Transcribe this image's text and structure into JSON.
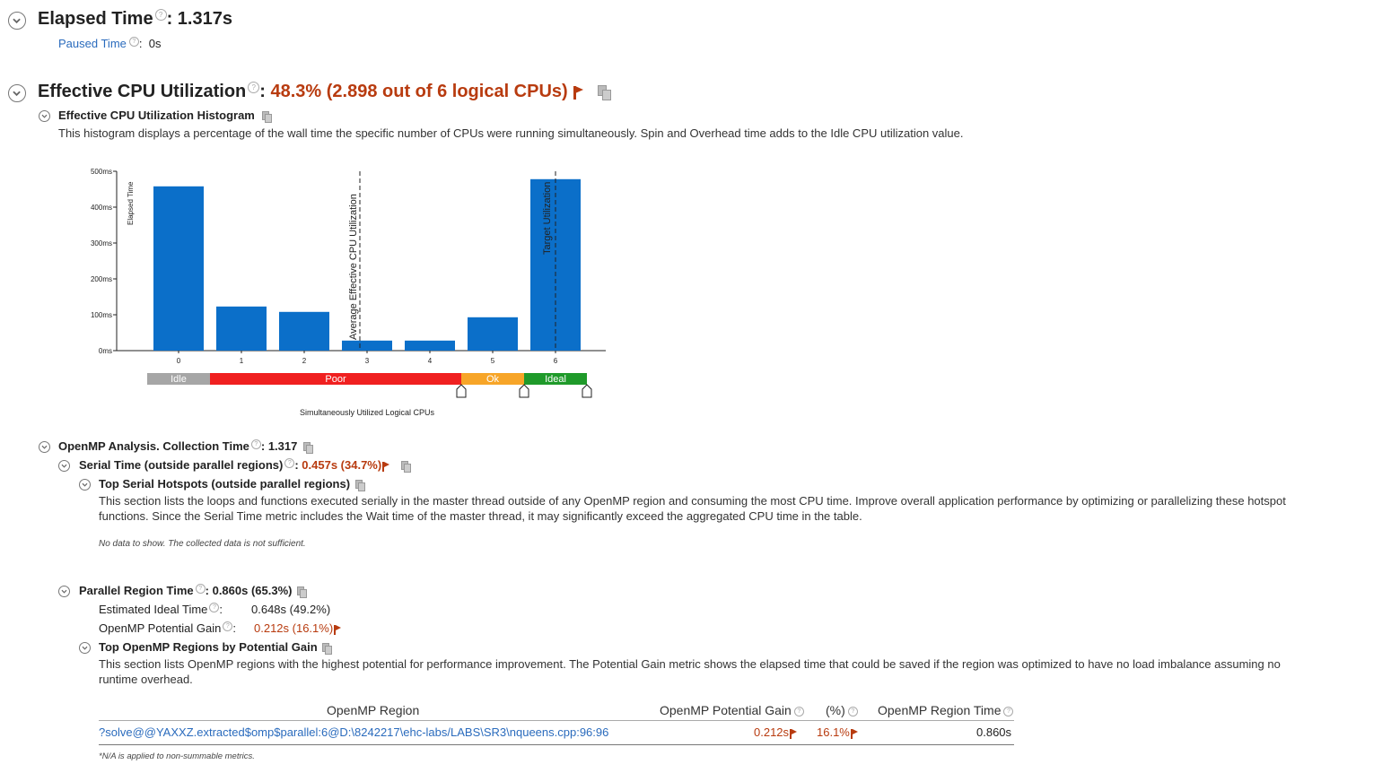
{
  "elapsed": {
    "label": "Elapsed Time",
    "value": "1.317s",
    "paused_label": "Paused Time",
    "paused_value": "0s"
  },
  "cpu": {
    "label": "Effective CPU Utilization",
    "value": "48.3% (2.898 out of 6 logical CPUs)"
  },
  "histogram": {
    "title": "Effective CPU Utilization Histogram",
    "description": "This histogram displays a percentage of the wall time the specific number of CPUs were running simultaneously. Spin and Overhead time adds to the Idle CPU utilization value.",
    "xlabel": "Simultaneously Utilized Logical CPUs",
    "ylabel": "Elapsed Time",
    "avg_label": "Average Effective CPU Utilization",
    "target_label": "Target Utilization",
    "bands": [
      "Idle",
      "Poor",
      "Ok",
      "Ideal"
    ]
  },
  "chart_data": {
    "type": "bar",
    "categories": [
      "0",
      "1",
      "2",
      "3",
      "4",
      "5",
      "6"
    ],
    "values": [
      458,
      123,
      108,
      28,
      28,
      93,
      478
    ],
    "ylabel": "Elapsed Time",
    "xlabel": "Simultaneously Utilized Logical CPUs",
    "ylim": [
      0,
      500
    ],
    "yticks": [
      "0ms",
      "100ms",
      "200ms",
      "300ms",
      "400ms",
      "500ms"
    ],
    "average": 2.898,
    "target": 6,
    "colors": {
      "bar": "#0b6fc9",
      "idle": "#a6a6a6",
      "poor": "#f02020",
      "ok": "#f7a528",
      "ideal": "#1f9a2a"
    }
  },
  "openmp": {
    "label": "OpenMP Analysis. Collection Time",
    "value": "1.317",
    "serial": {
      "label": "Serial Time (outside parallel regions)",
      "value": "0.457s (34.7%)",
      "hotspots_title": "Top Serial Hotspots (outside parallel regions)",
      "hotspots_desc_1": "This section lists the loops and functions executed serially in the master thread outside of any OpenMP region and consuming the most CPU time. Improve overall application performance by optimizing or parallelizing these hotspot",
      "hotspots_desc_2": "functions. Since the Serial Time metric includes the Wait time of the master thread, it may significantly exceed the aggregated CPU time in the table.",
      "no_data": "No data to show. The collected data is not sufficient."
    },
    "parallel": {
      "label": "Parallel Region Time",
      "value": "0.860s (65.3%)",
      "ideal_label": "Estimated Ideal Time",
      "ideal_value": "0.648s (49.2%)",
      "gain_label": "OpenMP Potential Gain",
      "gain_value": "0.212s (16.1%)",
      "regions_title": "Top OpenMP Regions by Potential Gain",
      "regions_desc_1": "This section lists OpenMP regions with the highest potential for performance improvement. The Potential Gain metric shows the elapsed time that could be saved if the region was optimized to have no load imbalance assuming no",
      "regions_desc_2": "runtime overhead."
    }
  },
  "table": {
    "headers": [
      "OpenMP Region",
      "OpenMP Potential Gain",
      "(%)",
      "OpenMP Region Time"
    ],
    "rows": [
      {
        "region": "?solve@@YAXXZ.extracted$omp$parallel:6@D:\\8242217\\ehc-labs/LABS\\SR3\\nqueens.cpp:96:96",
        "gain": "0.212s",
        "pct": "16.1%",
        "time": "0.860s"
      }
    ],
    "footnote": "*N/A is applied to non-summable metrics."
  }
}
